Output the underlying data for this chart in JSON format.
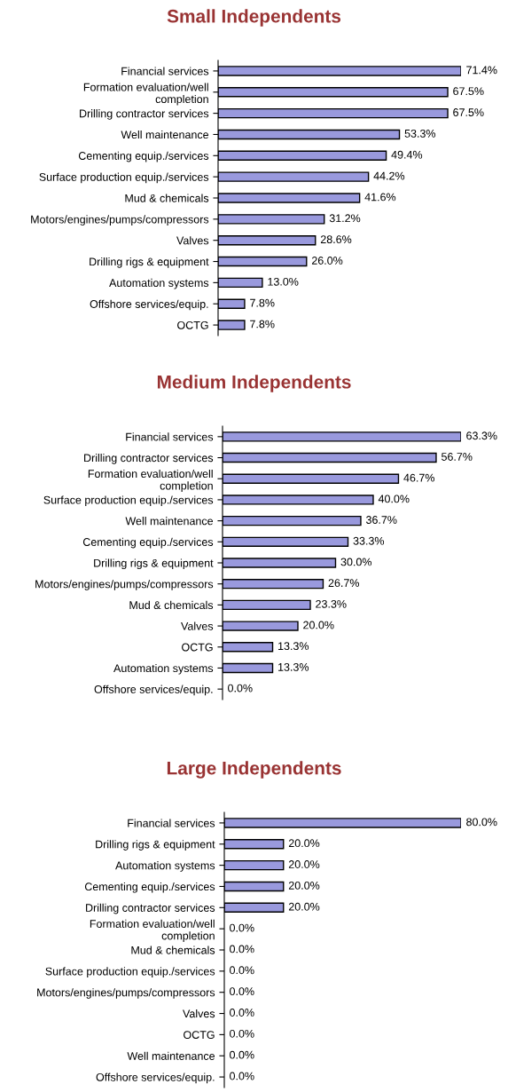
{
  "chart_data": [
    {
      "type": "bar",
      "orientation": "horizontal",
      "title": "Small Independents",
      "categories": [
        "Financial services",
        "Formation evaluation/well\ncompletion",
        "Drilling contractor services",
        "Well maintenance",
        "Cementing equip./services",
        "Surface production equip./services",
        "Mud & chemicals",
        "Motors/engines/pumps/compressors",
        "Valves",
        "Drilling rigs & equipment",
        "Automation systems",
        "Offshore services/equip.",
        "OCTG"
      ],
      "values": [
        71.4,
        67.5,
        67.5,
        53.3,
        49.4,
        44.2,
        41.6,
        31.2,
        28.6,
        26.0,
        13.0,
        7.8,
        7.8
      ],
      "value_labels": [
        "71.4%",
        "67.5%",
        "67.5%",
        "53.3%",
        "49.4%",
        "44.2%",
        "41.6%",
        "31.2%",
        "28.6%",
        "26.0%",
        "13.0%",
        "7.8%",
        "7.8%"
      ],
      "color": "#9999dd",
      "tick_labels": "y",
      "grid": false,
      "legend": false
    },
    {
      "type": "bar",
      "orientation": "horizontal",
      "title": "Medium Independents",
      "categories": [
        "Financial services",
        "Drilling contractor services",
        "Formation evaluation/well\ncompletion",
        "Surface production equip./services",
        "Well maintenance",
        "Cementing equip./services",
        "Drilling rigs & equipment",
        "Motors/engines/pumps/compressors",
        "Mud & chemicals",
        "Valves",
        "OCTG",
        "Automation systems",
        "Offshore services/equip."
      ],
      "values": [
        63.3,
        56.7,
        46.7,
        40.0,
        36.7,
        33.3,
        30.0,
        26.7,
        23.3,
        20.0,
        13.3,
        13.3,
        0.0
      ],
      "value_labels": [
        "63.3%",
        "56.7%",
        "46.7%",
        "40.0%",
        "36.7%",
        "33.3%",
        "30.0%",
        "26.7%",
        "23.3%",
        "20.0%",
        "13.3%",
        "13.3%",
        "0.0%"
      ],
      "color": "#9999dd",
      "tick_labels": "y",
      "grid": false,
      "legend": false
    },
    {
      "type": "bar",
      "orientation": "horizontal",
      "title": "Large Independents",
      "categories": [
        "Financial services",
        "Drilling rigs & equipment",
        "Automation systems",
        "Cementing equip./services",
        "Drilling contractor services",
        "Formation evaluation/well\ncompletion",
        "Mud & chemicals",
        "Surface production equip./services",
        "Motors/engines/pumps/compressors",
        "Valves",
        "OCTG",
        "Well maintenance",
        "Offshore services/equip."
      ],
      "values": [
        80.0,
        20.0,
        20.0,
        20.0,
        20.0,
        0.0,
        0.0,
        0.0,
        0.0,
        0.0,
        0.0,
        0.0,
        0.0
      ],
      "value_labels": [
        "80.0%",
        "20.0%",
        "20.0%",
        "20.0%",
        "20.0%",
        "0.0%",
        "0.0%",
        "0.0%",
        "0.0%",
        "0.0%",
        "0.0%",
        "0.0%",
        "0.0%"
      ],
      "color": "#9999dd",
      "tick_labels": "y",
      "grid": false,
      "legend": false
    }
  ]
}
